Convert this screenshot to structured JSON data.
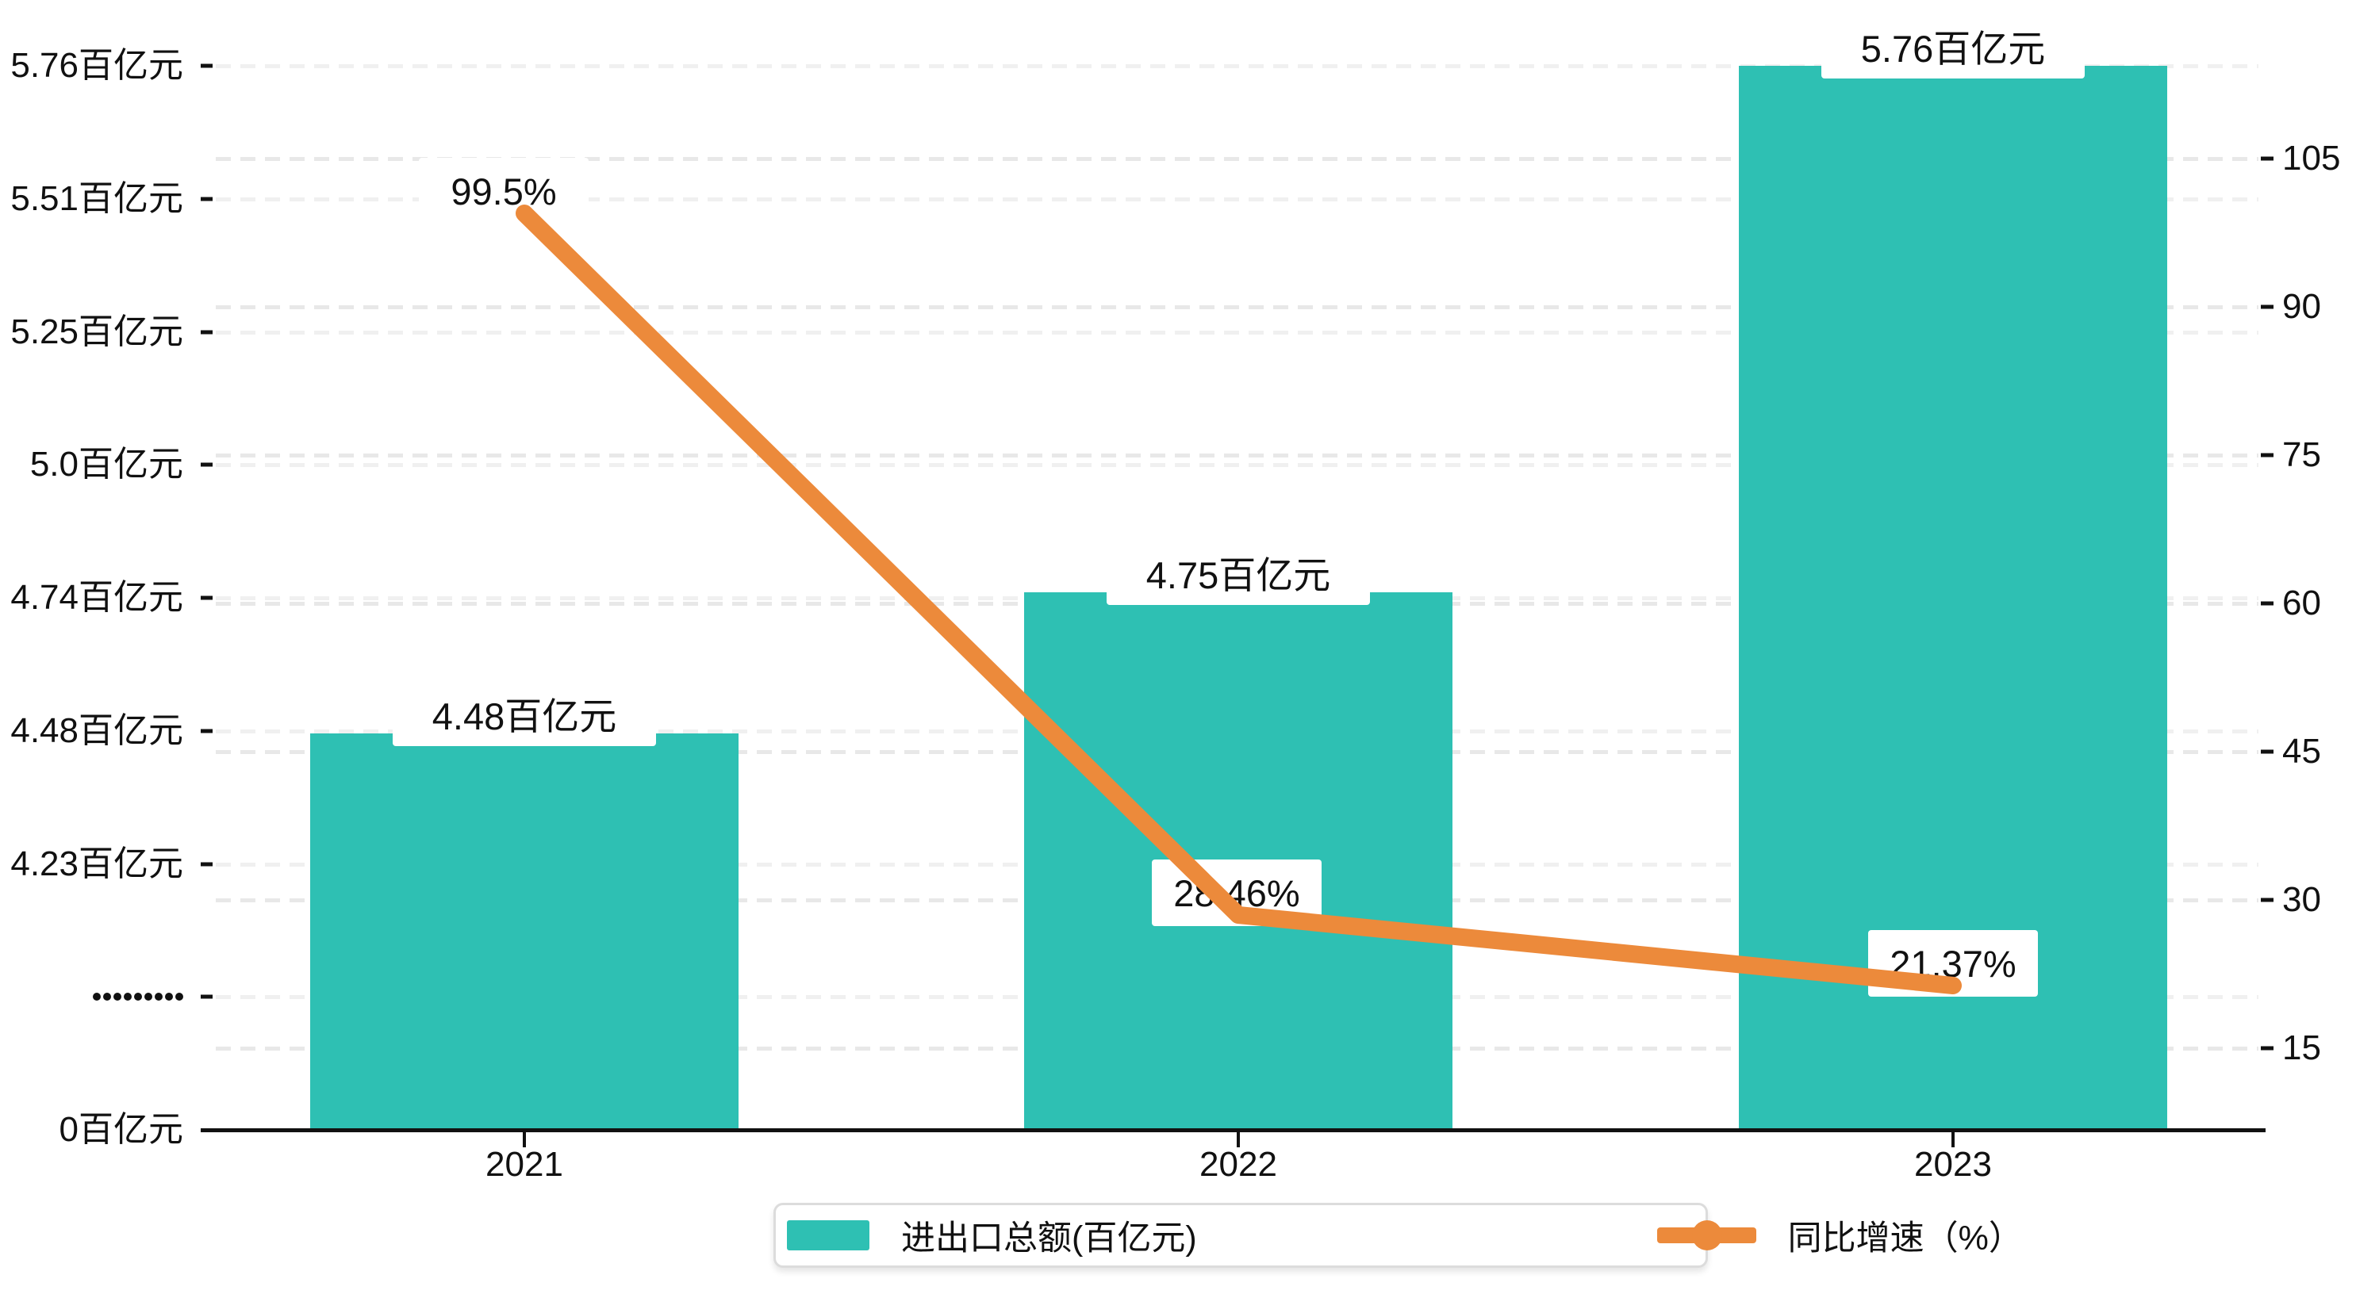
{
  "chart_data": {
    "type": "bar",
    "combo": "bar-line-dual-axis",
    "categories": [
      "2021",
      "2022",
      "2023"
    ],
    "series": [
      {
        "name": "进出口总额(百亿元)",
        "type": "bar",
        "axis": "left",
        "unit": "百亿元",
        "values": [
          4.48,
          4.75,
          5.76
        ],
        "point_labels": [
          "4.48百亿元",
          "4.75百亿元",
          "5.76百亿元"
        ],
        "color": "#2ec0b3"
      },
      {
        "name": "同比增速（%）",
        "type": "line",
        "axis": "right",
        "unit": "%",
        "values": [
          99.5,
          28.46,
          21.37
        ],
        "point_labels": [
          "99.5%",
          "28.46%",
          "21.37%"
        ],
        "color": "#ec8a3b"
      }
    ],
    "left_axis": {
      "tick_labels": [
        "5.76百亿元",
        "5.51百亿元",
        "5.25百亿元",
        "5.0百亿元",
        "4.74百亿元",
        "4.48百亿元",
        "4.23百亿元",
        "•••••••••",
        "0百亿元"
      ],
      "tick_values": [
        5.76,
        5.51,
        5.25,
        5.0,
        4.74,
        4.48,
        4.23,
        null,
        0
      ],
      "break_row_index": 7,
      "break_dot_count": 9
    },
    "right_axis": {
      "tick_labels": [
        "105",
        "90",
        "75",
        "60",
        "45",
        "30",
        "15"
      ],
      "tick_values": [
        105,
        90,
        75,
        60,
        45,
        30,
        15
      ]
    },
    "x_axis": {
      "tick_labels": [
        "2021",
        "2022",
        "2023"
      ]
    },
    "grid": "dashed",
    "legend_position": "bottom"
  },
  "legend": {
    "items": [
      {
        "label": "进出口总额(百亿元)",
        "marker": "bar-swatch",
        "color": "#2ec0b3"
      },
      {
        "label": "同比增速（%）",
        "marker": "line-dot",
        "color": "#ec8a3b"
      }
    ]
  },
  "colors": {
    "bar": "#2ec0b3",
    "line": "#ec8a3b",
    "grid_left": "#f0f0f0",
    "grid_right": "#e8e8e8",
    "axis": "#111111",
    "label_box": "#ffffff",
    "background": "#ffffff"
  }
}
